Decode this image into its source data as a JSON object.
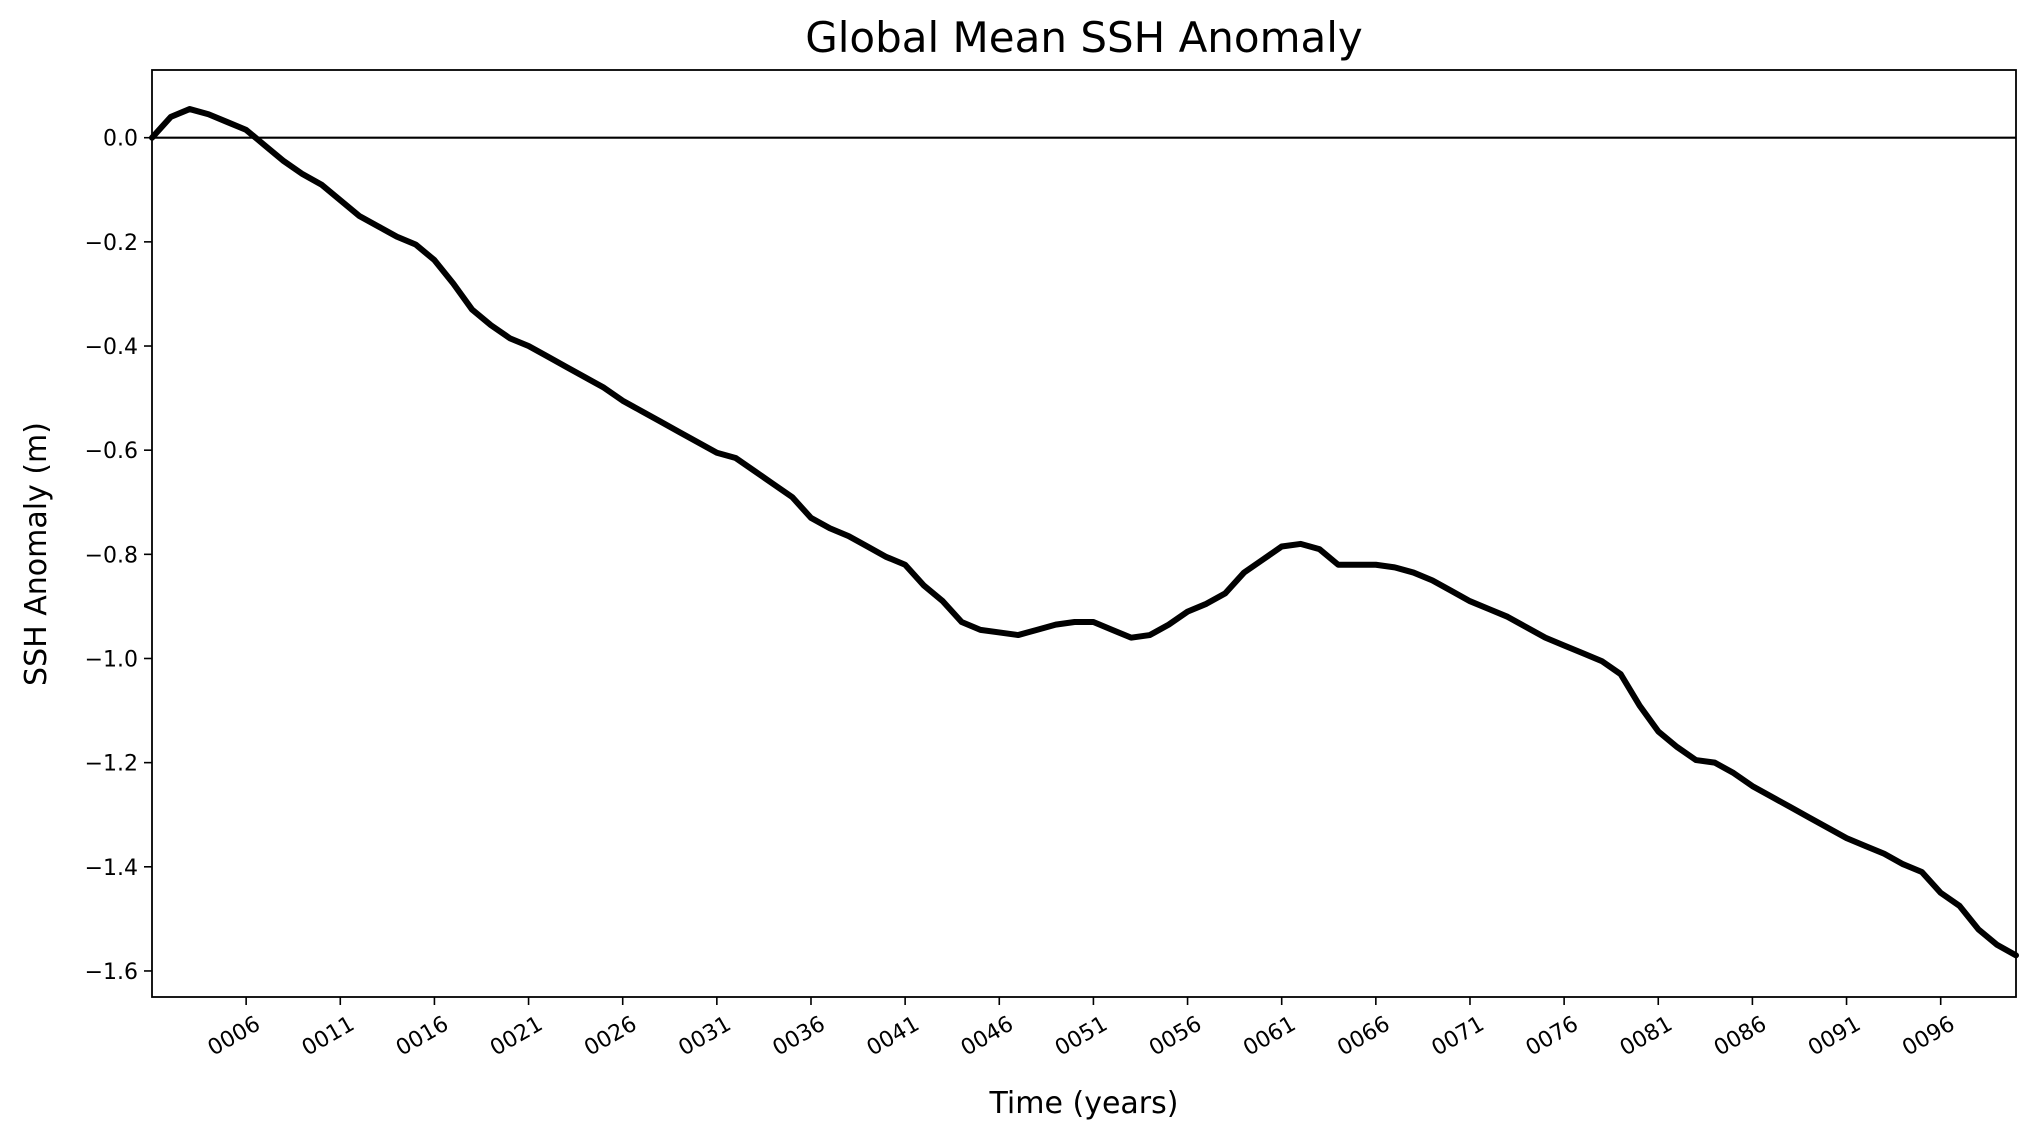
{
  "chart_data": {
    "type": "line",
    "title": "Global Mean SSH Anomaly",
    "xlabel": "Time (years)",
    "ylabel": "SSH Anomaly (m)",
    "xlim": [
      1,
      100
    ],
    "ylim": [
      -1.65,
      0.13
    ],
    "grid": false,
    "x_ticks": [
      6,
      11,
      16,
      21,
      26,
      31,
      36,
      41,
      46,
      51,
      56,
      61,
      66,
      71,
      76,
      81,
      86,
      91,
      96
    ],
    "x_tick_labels": [
      "0006",
      "0011",
      "0016",
      "0021",
      "0026",
      "0031",
      "0036",
      "0041",
      "0046",
      "0051",
      "0056",
      "0061",
      "0066",
      "0071",
      "0076",
      "0081",
      "0086",
      "0091",
      "0096"
    ],
    "y_ticks": [
      0.0,
      -0.2,
      -0.4,
      -0.6,
      -0.8,
      -1.0,
      -1.2,
      -1.4,
      -1.6
    ],
    "y_tick_labels": [
      "0.0",
      "−0.2",
      "−0.4",
      "−0.6",
      "−0.8",
      "−1.0",
      "−1.2",
      "−1.4",
      "−1.6"
    ],
    "reference_line": {
      "y": 0.0,
      "color": "#000000"
    },
    "series": [
      {
        "color": "#000000",
        "x": [
          1,
          2,
          3,
          4,
          5,
          6,
          7,
          8,
          9,
          10,
          11,
          12,
          13,
          14,
          15,
          16,
          17,
          18,
          19,
          20,
          21,
          22,
          23,
          24,
          25,
          26,
          27,
          28,
          29,
          30,
          31,
          32,
          33,
          34,
          35,
          36,
          37,
          38,
          39,
          40,
          41,
          42,
          43,
          44,
          45,
          46,
          47,
          48,
          49,
          50,
          51,
          52,
          53,
          54,
          55,
          56,
          57,
          58,
          59,
          60,
          61,
          62,
          63,
          64,
          65,
          66,
          67,
          68,
          69,
          70,
          71,
          72,
          73,
          74,
          75,
          76,
          77,
          78,
          79,
          80,
          81,
          82,
          83,
          84,
          85,
          86,
          87,
          88,
          89,
          90,
          91,
          92,
          93,
          94,
          95,
          96,
          97,
          98,
          99,
          100
        ],
        "y": [
          0.0,
          0.04,
          0.055,
          0.045,
          0.03,
          0.015,
          -0.015,
          -0.045,
          -0.07,
          -0.09,
          -0.12,
          -0.15,
          -0.17,
          -0.19,
          -0.205,
          -0.235,
          -0.28,
          -0.33,
          -0.36,
          -0.385,
          -0.4,
          -0.42,
          -0.44,
          -0.46,
          -0.48,
          -0.505,
          -0.525,
          -0.545,
          -0.565,
          -0.585,
          -0.605,
          -0.615,
          -0.64,
          -0.665,
          -0.69,
          -0.73,
          -0.75,
          -0.765,
          -0.785,
          -0.805,
          -0.82,
          -0.86,
          -0.89,
          -0.93,
          -0.945,
          -0.95,
          -0.955,
          -0.945,
          -0.935,
          -0.93,
          -0.93,
          -0.945,
          -0.96,
          -0.955,
          -0.935,
          -0.91,
          -0.895,
          -0.875,
          -0.835,
          -0.81,
          -0.785,
          -0.78,
          -0.79,
          -0.82,
          -0.82,
          -0.82,
          -0.825,
          -0.835,
          -0.85,
          -0.87,
          -0.89,
          -0.905,
          -0.92,
          -0.94,
          -0.96,
          -0.975,
          -0.99,
          -1.005,
          -1.03,
          -1.09,
          -1.14,
          -1.17,
          -1.195,
          -1.2,
          -1.22,
          -1.245,
          -1.265,
          -1.285,
          -1.305,
          -1.325,
          -1.345,
          -1.36,
          -1.375,
          -1.395,
          -1.41,
          -1.45,
          -1.475,
          -1.52,
          -1.55,
          -1.57
        ]
      }
    ]
  }
}
